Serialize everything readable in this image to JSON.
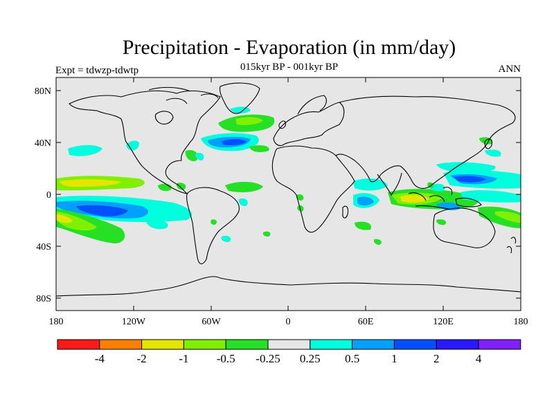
{
  "title": "Precipitation - Evaporation (in mm/day)",
  "subtitle": "015kyr BP - 001kyr BP",
  "left_label": "Expt = tdwzp-tdwtp",
  "right_label": "ANN",
  "axes": {
    "lat_ticks": [
      "80N",
      "40N",
      "0",
      "40S",
      "80S"
    ],
    "lon_ticks": [
      "180",
      "120W",
      "60W",
      "0",
      "60E",
      "120E",
      "180"
    ]
  },
  "colorbar": {
    "colors": [
      "#ff1a1a",
      "#ff8000",
      "#e5e500",
      "#80f000",
      "#26e026",
      "#e6e6e6",
      "#00ffdd",
      "#00a0ff",
      "#0050ff",
      "#2a18ff",
      "#8020ff"
    ],
    "labels": [
      "-4",
      "-2",
      "-1",
      "-0.5",
      "-0.25",
      "0.25",
      "0.5",
      "1",
      "2",
      "4"
    ]
  },
  "colors": {
    "background": "#e6e6e6",
    "coast": "#000000"
  }
}
